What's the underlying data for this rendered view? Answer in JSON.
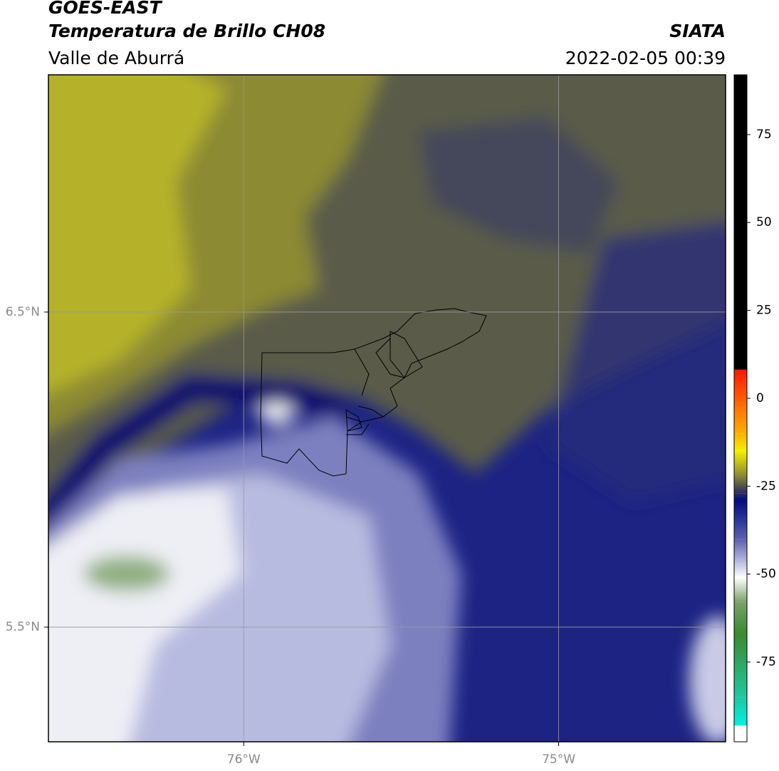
{
  "header": {
    "title": "GOES-EAST",
    "subtitle": "Temperatura de Brillo CH08",
    "region": "Valle de Aburrá",
    "source": "SIATA",
    "datetime": "2022-02-05 00:39"
  },
  "map": {
    "xlim": [
      -76.62,
      -74.47
    ],
    "ylim": [
      5.136,
      7.253
    ],
    "xticks": [
      {
        "value": -76,
        "label": "76°W"
      },
      {
        "value": -75,
        "label": "75°W"
      }
    ],
    "yticks": [
      {
        "value": 6.5,
        "label": "6.5°N"
      },
      {
        "value": 5.5,
        "label": "5.5°N"
      }
    ],
    "grid": true
  },
  "colorbar": {
    "lim": [
      -97.7,
      92
    ],
    "ticks": [
      75,
      50,
      25,
      0,
      -25,
      -50,
      -75
    ],
    "colormap": [
      {
        "value": 92,
        "color": "#000000"
      },
      {
        "value": 8.3,
        "color": "#000000"
      },
      {
        "value": 8,
        "color": "#ff1a00"
      },
      {
        "value": -10,
        "color": "#ffb000"
      },
      {
        "value": -15,
        "color": "#f5f000"
      },
      {
        "value": -22,
        "color": "#8c8a33"
      },
      {
        "value": -27,
        "color": "#2a2a60"
      },
      {
        "value": -29,
        "color": "#000c80"
      },
      {
        "value": -40,
        "color": "#5a5fb0"
      },
      {
        "value": -47,
        "color": "#c0c2e0"
      },
      {
        "value": -51,
        "color": "#ffffff"
      },
      {
        "value": -58,
        "color": "#7ba06a"
      },
      {
        "value": -67,
        "color": "#3a8a30"
      },
      {
        "value": -85,
        "color": "#20c8a0"
      },
      {
        "value": -93,
        "color": "#00f0e0"
      },
      {
        "value": -93.2,
        "color": "#ffffff"
      },
      {
        "value": -97.7,
        "color": "#ffffff"
      }
    ]
  }
}
